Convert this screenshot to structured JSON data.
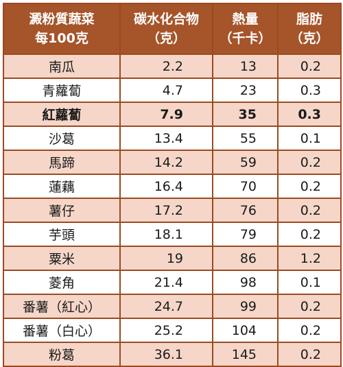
{
  "headers": {
    "food_line1": "澱粉質蔬菜",
    "food_line2": "每100克",
    "carb_line1": "碳水化合物",
    "carb_line2": "（克）",
    "cal_line1": "熱量",
    "cal_line2": "（千卡）",
    "fat_line1": "脂肪",
    "fat_line2": "（克）"
  },
  "rows": [
    {
      "name": "南瓜",
      "carb": "2.2",
      "cal": "13",
      "fat": "0.2",
      "shade": true,
      "bold": false
    },
    {
      "name": "青蘿蔔",
      "carb": "4.7",
      "cal": "23",
      "fat": "0.3",
      "shade": false,
      "bold": false
    },
    {
      "name": "紅蘿蔔",
      "carb": "7.9",
      "cal": "35",
      "fat": "0.3",
      "shade": true,
      "bold": true
    },
    {
      "name": "沙葛",
      "carb": "13.4",
      "cal": "55",
      "fat": "0.1",
      "shade": false,
      "bold": false
    },
    {
      "name": "馬蹄",
      "carb": "14.2",
      "cal": "59",
      "fat": "0.2",
      "shade": true,
      "bold": false
    },
    {
      "name": "蓮藕",
      "carb": "16.4",
      "cal": "70",
      "fat": "0.2",
      "shade": false,
      "bold": false
    },
    {
      "name": "薯仔",
      "carb": "17.2",
      "cal": "76",
      "fat": "0.2",
      "shade": true,
      "bold": false
    },
    {
      "name": "芋頭",
      "carb": "18.1",
      "cal": "79",
      "fat": "0.2",
      "shade": false,
      "bold": false
    },
    {
      "name": "粟米",
      "carb": "19",
      "cal": "86",
      "fat": "1.2",
      "shade": true,
      "bold": false
    },
    {
      "name": "菱角",
      "carb": "21.4",
      "cal": "98",
      "fat": "0.1",
      "shade": false,
      "bold": false
    },
    {
      "name": "番薯（紅心）",
      "carb": "24.7",
      "cal": "99",
      "fat": "0.2",
      "shade": true,
      "bold": false
    },
    {
      "name": "番薯（白心）",
      "carb": "25.2",
      "cal": "104",
      "fat": "0.2",
      "shade": false,
      "bold": false
    },
    {
      "name": "粉葛",
      "carb": "36.1",
      "cal": "145",
      "fat": "0.2",
      "shade": true,
      "bold": false
    }
  ]
}
